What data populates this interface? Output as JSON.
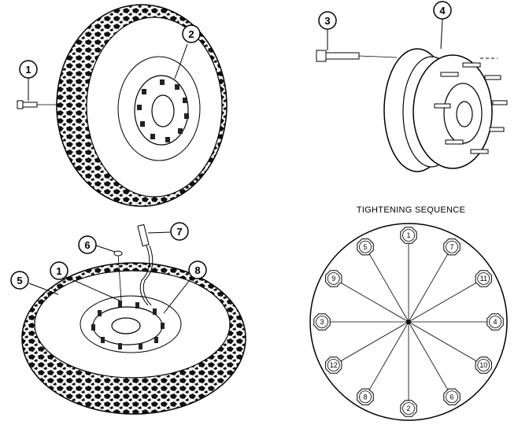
{
  "callouts": {
    "c1_top": "1",
    "c2": "2",
    "c3": "3",
    "c4": "4",
    "c5": "5",
    "c1_bottom": "1",
    "c6": "6",
    "c7": "7",
    "c8": "8"
  },
  "sequence": {
    "title": "TIGHTENING SEQUENCE",
    "nuts": [
      "1",
      "7",
      "11",
      "4",
      "10",
      "6",
      "2",
      "8",
      "12",
      "3",
      "9",
      "5"
    ]
  }
}
